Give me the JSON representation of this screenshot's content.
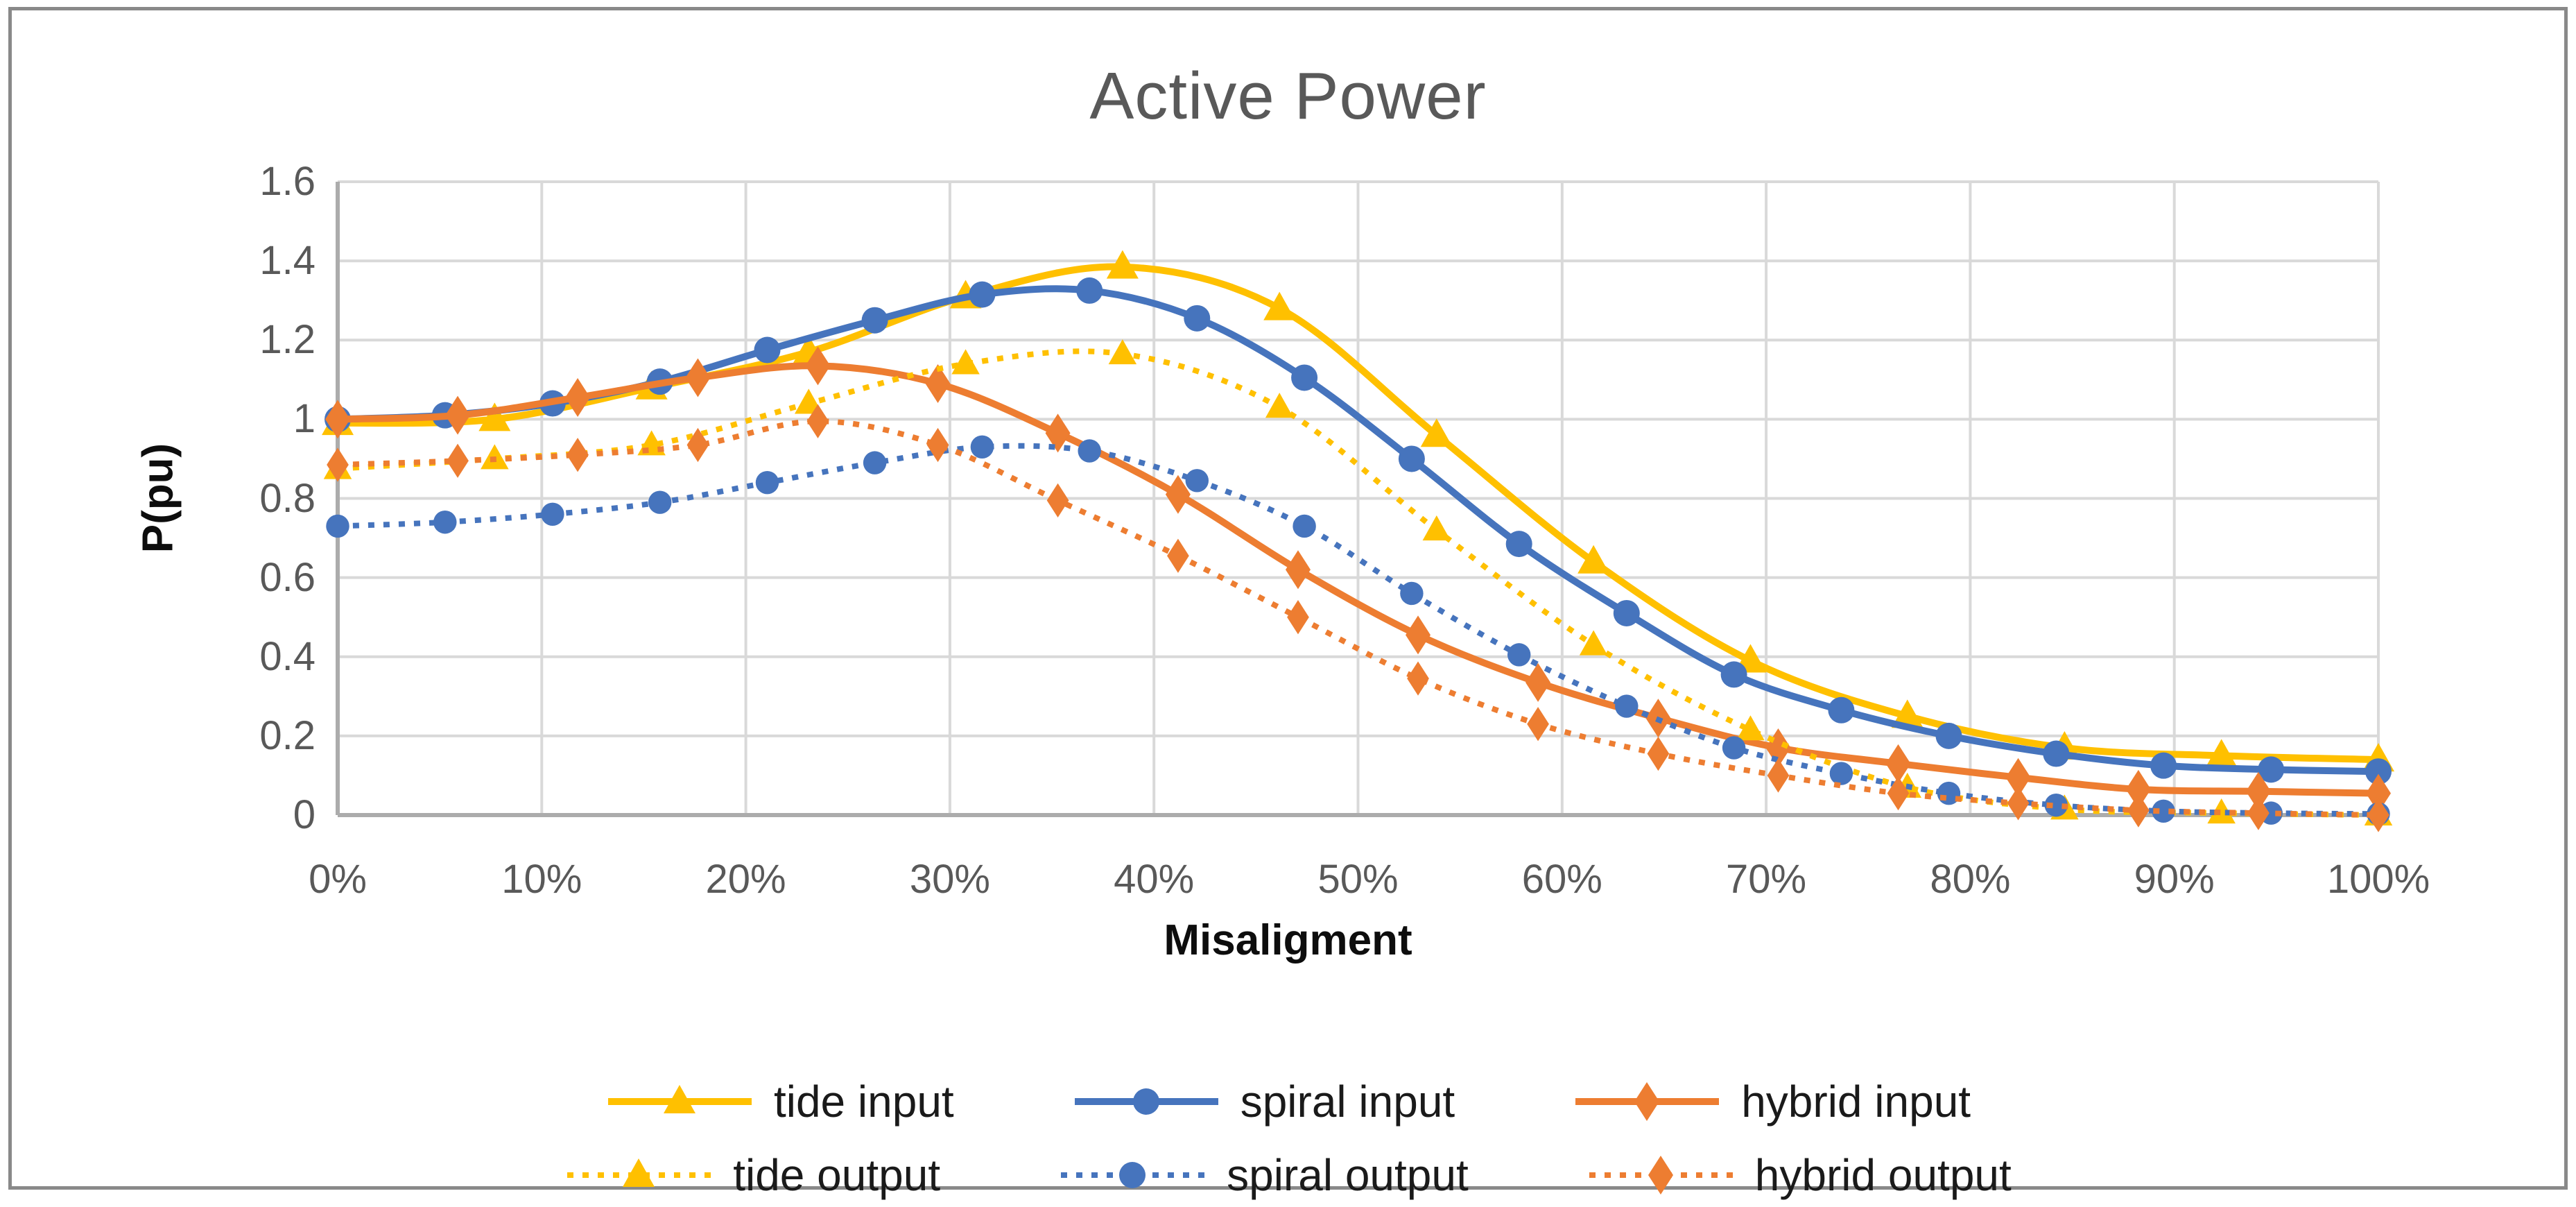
{
  "title": "Active Power",
  "chart_data": {
    "type": "line",
    "title": "Active Power",
    "xlabel": "Misaligment",
    "ylabel": "P(pu)",
    "xlim": [
      0,
      100
    ],
    "ylim": [
      0,
      1.6
    ],
    "grid": true,
    "legend_position": "bottom",
    "x_tick_labels": [
      "0%",
      "10%",
      "20%",
      "30%",
      "40%",
      "50%",
      "60%",
      "70%",
      "80%",
      "90%",
      "100%"
    ],
    "x_tick_values": [
      0,
      10,
      20,
      30,
      40,
      50,
      60,
      70,
      80,
      90,
      100
    ],
    "y_tick_labels": [
      "0",
      "0.2",
      "0.4",
      "0.6",
      "0.8",
      "1",
      "1.2",
      "1.4",
      "1.6"
    ],
    "y_tick_values": [
      0,
      0.2,
      0.4,
      0.6,
      0.8,
      1,
      1.2,
      1.4,
      1.6
    ],
    "colors": {
      "tide": "#FFC000",
      "spiral": "#4674BD",
      "hybrid": "#ED7D31",
      "gridline": "#D9D9D9",
      "axis_line": "#ACACAC",
      "tick_text": "#595959",
      "title_text": "#595959",
      "legend_text": "#1a1a1a",
      "border": "#898989"
    },
    "series": [
      {
        "name": "tide input",
        "color": "#FFC000",
        "line_style": "solid",
        "marker": "triangle",
        "x": [
          0,
          7.69,
          15.38,
          23.08,
          30.77,
          38.46,
          46.15,
          53.85,
          61.54,
          69.23,
          76.92,
          84.62,
          92.31,
          100
        ],
        "y": [
          0.99,
          1.0,
          1.08,
          1.17,
          1.31,
          1.385,
          1.28,
          0.96,
          0.64,
          0.39,
          0.25,
          0.17,
          0.15,
          0.14
        ]
      },
      {
        "name": "spiral input",
        "color": "#4674BD",
        "line_style": "solid",
        "marker": "circle",
        "x": [
          0,
          5.26,
          10.53,
          15.79,
          21.05,
          26.32,
          31.58,
          36.84,
          42.11,
          47.37,
          52.63,
          57.89,
          63.16,
          68.42,
          73.68,
          78.95,
          84.21,
          89.47,
          94.74,
          100
        ],
        "y": [
          1.0,
          1.01,
          1.04,
          1.095,
          1.175,
          1.25,
          1.315,
          1.325,
          1.255,
          1.105,
          0.9,
          0.685,
          0.51,
          0.355,
          0.265,
          0.2,
          0.155,
          0.125,
          0.115,
          0.11
        ]
      },
      {
        "name": "hybrid input",
        "color": "#ED7D31",
        "line_style": "solid",
        "marker": "diamond",
        "x": [
          0,
          5.88,
          11.76,
          17.65,
          23.53,
          29.41,
          35.29,
          41.18,
          47.06,
          52.94,
          58.82,
          64.71,
          70.59,
          76.47,
          82.35,
          88.24,
          94.12,
          100
        ],
        "y": [
          1.0,
          1.01,
          1.055,
          1.105,
          1.135,
          1.09,
          0.965,
          0.81,
          0.62,
          0.455,
          0.335,
          0.245,
          0.17,
          0.13,
          0.095,
          0.065,
          0.06,
          0.055
        ]
      },
      {
        "name": "tide output",
        "color": "#FFC000",
        "line_style": "dotted",
        "marker": "triangle",
        "x": [
          0,
          7.69,
          15.38,
          23.08,
          30.77,
          38.46,
          46.15,
          53.85,
          61.54,
          69.23,
          76.92,
          84.62,
          92.31,
          100
        ],
        "y": [
          0.875,
          0.9,
          0.935,
          1.04,
          1.14,
          1.165,
          1.03,
          0.72,
          0.43,
          0.215,
          0.07,
          0.015,
          0.005,
          0.0
        ]
      },
      {
        "name": "spiral output",
        "color": "#4674BD",
        "line_style": "dotted",
        "marker": "circle",
        "x": [
          0,
          5.26,
          10.53,
          15.79,
          21.05,
          26.32,
          31.58,
          36.84,
          42.11,
          47.37,
          52.63,
          57.89,
          63.16,
          68.42,
          73.68,
          78.95,
          84.21,
          89.47,
          94.74,
          100
        ],
        "y": [
          0.73,
          0.74,
          0.76,
          0.79,
          0.84,
          0.89,
          0.93,
          0.92,
          0.845,
          0.73,
          0.56,
          0.405,
          0.275,
          0.17,
          0.105,
          0.055,
          0.025,
          0.01,
          0.005,
          0.003
        ]
      },
      {
        "name": "hybrid output",
        "color": "#ED7D31",
        "line_style": "dotted",
        "marker": "diamond",
        "x": [
          0,
          5.88,
          11.76,
          17.65,
          23.53,
          29.41,
          35.29,
          41.18,
          47.06,
          52.94,
          58.82,
          64.71,
          70.59,
          76.47,
          82.35,
          88.24,
          94.12,
          100
        ],
        "y": [
          0.885,
          0.895,
          0.91,
          0.935,
          0.995,
          0.935,
          0.795,
          0.655,
          0.5,
          0.345,
          0.23,
          0.155,
          0.1,
          0.055,
          0.03,
          0.012,
          0.005,
          0.0
        ]
      }
    ],
    "legend_rows": [
      [
        "tide input",
        "spiral input",
        "hybrid input"
      ],
      [
        "tide output",
        "spiral output",
        "hybrid output"
      ]
    ]
  }
}
